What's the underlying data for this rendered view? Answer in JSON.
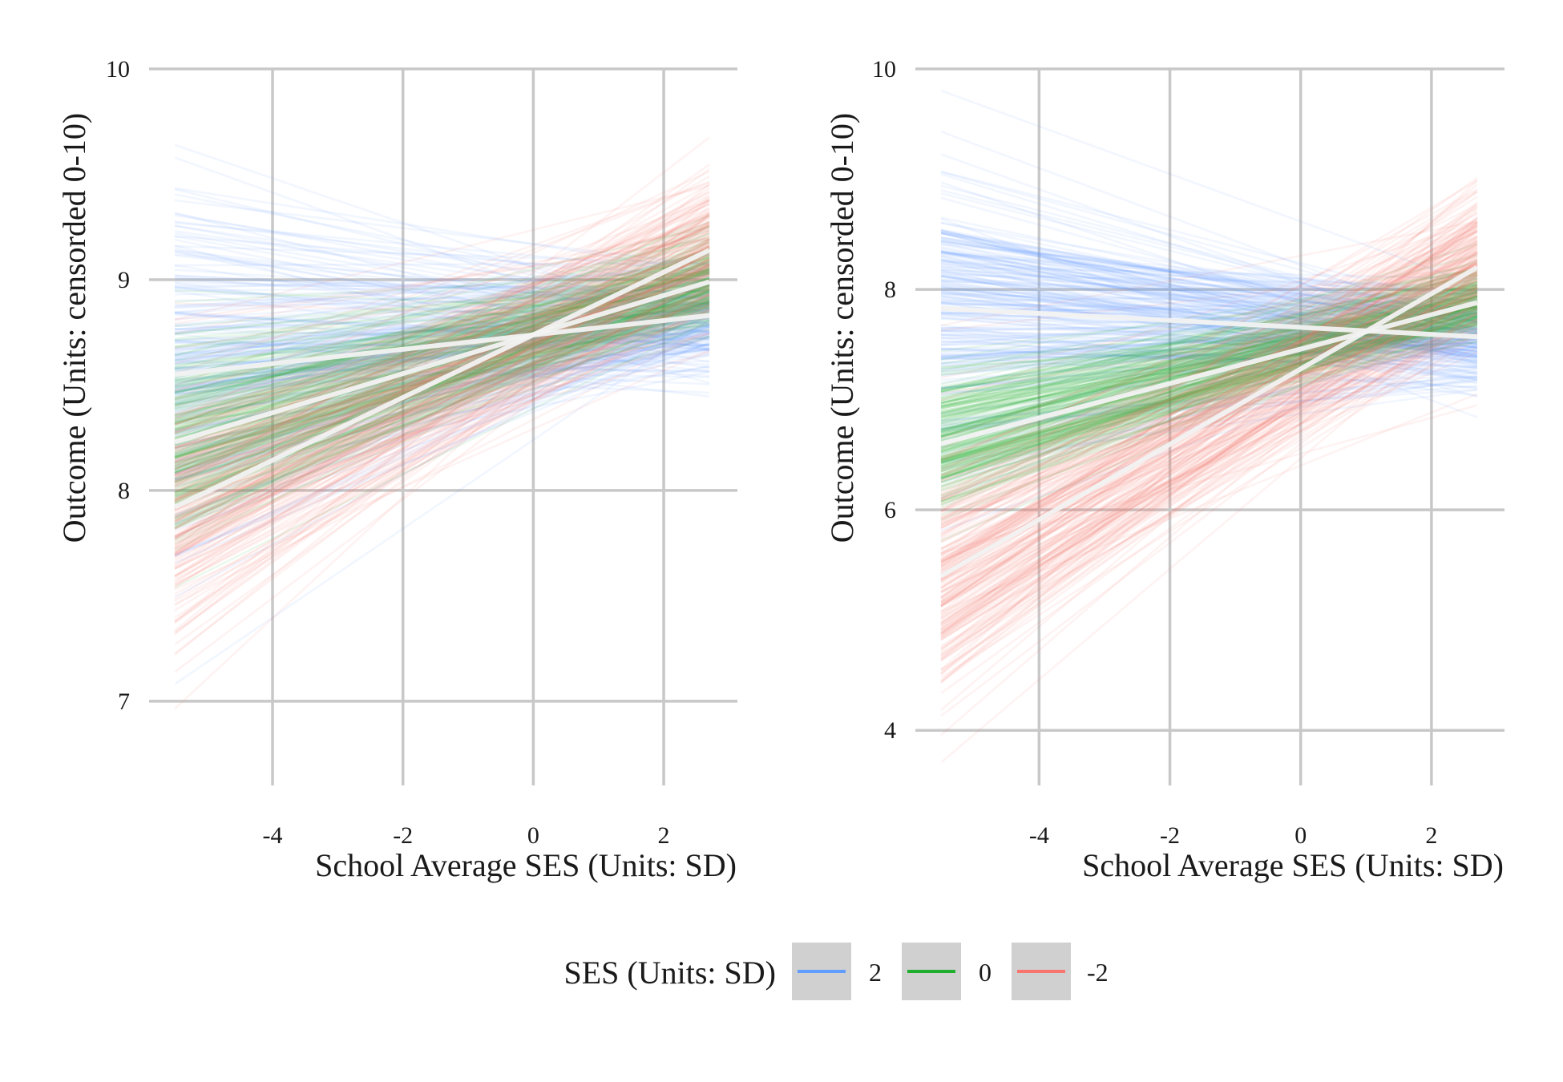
{
  "chart_data": [
    {
      "type": "line",
      "xlabel": "School Average SES (Units: SD)",
      "ylabel": "Outcome (Units: censorded 0-10)",
      "xlim": [
        -5.5,
        2.7
      ],
      "ylim": [
        6.6,
        10.0
      ],
      "x_ticks": [
        -4,
        -2,
        0,
        2
      ],
      "y_ticks": [
        7,
        8,
        9,
        10
      ],
      "x_tick_labels": [
        "-4",
        "-2",
        "0",
        "2"
      ],
      "y_tick_labels": [
        "7",
        "8",
        "9",
        "10"
      ],
      "grid": true,
      "series": [
        {
          "name": "2",
          "color": "#619CFF",
          "mean_line": {
            "x": [
              -5.5,
              2.7
            ],
            "y": [
              8.55,
              8.83
            ]
          },
          "spread_left": 0.42,
          "spread_right": 0.13,
          "n_draws": 220
        },
        {
          "name": "0",
          "color": "#1FAE2E",
          "mean_line": {
            "x": [
              -5.5,
              2.7
            ],
            "y": [
              8.23,
              8.99
            ]
          },
          "spread_left": 0.24,
          "spread_right": 0.11,
          "n_draws": 220
        },
        {
          "name": "-2",
          "color": "#F8766D",
          "mean_line": {
            "x": [
              -5.5,
              2.7
            ],
            "y": [
              7.92,
              9.14
            ]
          },
          "spread_left": 0.33,
          "spread_right": 0.2,
          "n_draws": 220
        }
      ]
    },
    {
      "type": "line",
      "xlabel": "School Average SES (Units: SD)",
      "ylabel": "Outcome (Units: censorded 0-10)",
      "xlim": [
        -5.5,
        2.7
      ],
      "ylim": [
        3.5,
        10.0
      ],
      "x_ticks": [
        -4,
        -2,
        0,
        2
      ],
      "y_ticks": [
        4,
        6,
        8,
        10
      ],
      "x_tick_labels": [
        "-4",
        "-2",
        "0",
        "2"
      ],
      "y_tick_labels": [
        "4",
        "6",
        "8",
        "10"
      ],
      "grid": true,
      "series": [
        {
          "name": "2",
          "color": "#619CFF",
          "mean_line": {
            "x": [
              -5.5,
              2.7
            ],
            "y": [
              7.83,
              7.57
            ]
          },
          "spread_left": 0.65,
          "spread_right": 0.22,
          "n_draws": 220
        },
        {
          "name": "0",
          "color": "#1FAE2E",
          "mean_line": {
            "x": [
              -5.5,
              2.7
            ],
            "y": [
              6.6,
              7.88
            ]
          },
          "spread_left": 0.35,
          "spread_right": 0.16,
          "n_draws": 220
        },
        {
          "name": "-2",
          "color": "#F8766D",
          "mean_line": {
            "x": [
              -5.5,
              2.7
            ],
            "y": [
              5.4,
              8.2
            ]
          },
          "spread_left": 0.6,
          "spread_right": 0.35,
          "n_draws": 220
        }
      ]
    }
  ],
  "legend": {
    "title": "SES (Units: SD)",
    "position": "bottom",
    "items": [
      {
        "label": "2",
        "color": "#619CFF"
      },
      {
        "label": "0",
        "color": "#1FAE2E"
      },
      {
        "label": "-2",
        "color": "#F8766D"
      }
    ]
  }
}
